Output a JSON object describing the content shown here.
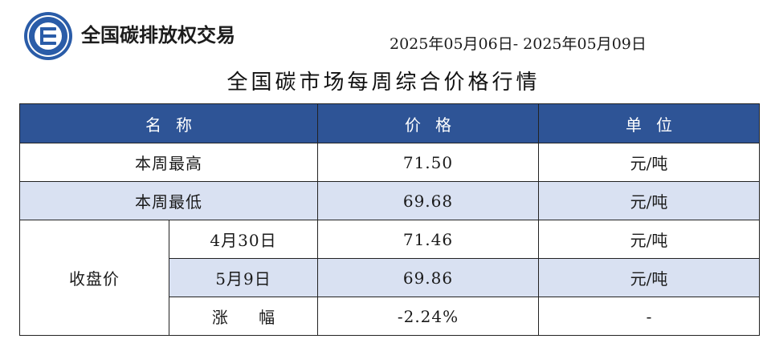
{
  "header": {
    "brand_name": "全国碳排放权交易",
    "date_range": "2025年05月06日- 2025年05月09日"
  },
  "title": "全国碳市场每周综合价格行情",
  "table": {
    "columns": [
      "名称",
      "价格",
      "单位"
    ],
    "rows": [
      {
        "name": "本周最高",
        "price": "71.50",
        "unit": "元/吨"
      },
      {
        "name": "本周最低",
        "price": "69.68",
        "unit": "元/吨"
      }
    ],
    "closing": {
      "group_label": "收盘价",
      "rows": [
        {
          "sub": "4月30日",
          "price": "71.46",
          "unit": "元/吨"
        },
        {
          "sub": "5月9日",
          "price": "69.86",
          "unit": "元/吨"
        },
        {
          "sub": "涨 幅",
          "price": "-2.24%",
          "unit": "-"
        }
      ]
    }
  },
  "colors": {
    "header_bg": "#2e5496",
    "row_shade": "#d9e1f2",
    "logo_blue": "#2a5ca8"
  },
  "icons": {
    "logo": "carbon-exchange-logo-icon"
  }
}
